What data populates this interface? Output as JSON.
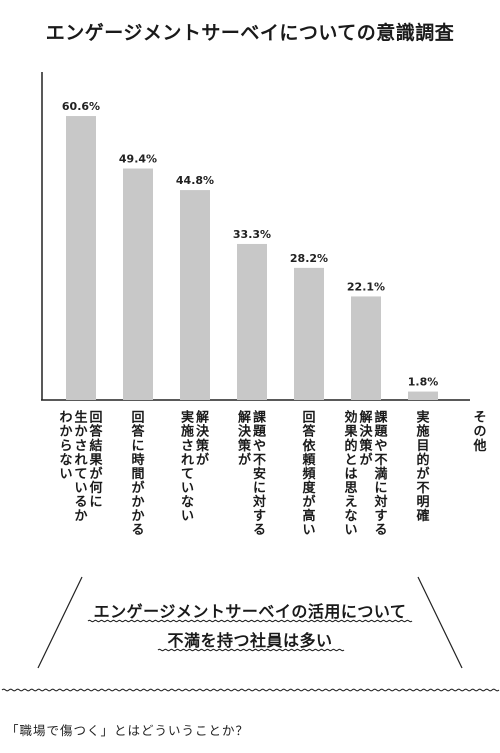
{
  "chart_data": {
    "type": "bar",
    "title": "エンゲージメントサーベイについての意識調査",
    "categories": [
      "回答結果が何に生かされているかわからない",
      "回答に時間がかかる",
      "実施されていない解決策が",
      "課題や不安に対する解決策が",
      "回答依頼頻度が高い",
      "課題や不満に対する解決策が効果的とは思えない",
      "実施目的が不明確",
      "その他"
    ],
    "category_columns": [
      [
        "回答結果が何に",
        "生かされているか",
        "わからない"
      ],
      [
        "回答に時間がかかる"
      ],
      [
        "解決策が",
        "実施されていない"
      ],
      [
        "課題や不安に対する",
        "解決策が"
      ],
      [
        "回答依頼頻度が高い"
      ],
      [
        "課題や不満に対する",
        "解決策が",
        "効果的とは思えない"
      ],
      [
        "実施目的が不明確"
      ],
      [
        "その他"
      ]
    ],
    "values": [
      60.6,
      49.4,
      44.8,
      33.3,
      28.2,
      22.1,
      1.8,
      0
    ],
    "value_labels": [
      "60.6%",
      "49.4%",
      "44.8%",
      "33.3%",
      "28.2%",
      "22.1%",
      "1.8%",
      ""
    ],
    "ylim": [
      0,
      70
    ],
    "bar_color": "#c8c8c8",
    "grid": false
  },
  "callout": {
    "line1": "エンゲージメントサーベイの活用について",
    "line2": "不満を持つ社員は多い"
  },
  "footer": "「職場で傷つく」とはどういうことか？"
}
